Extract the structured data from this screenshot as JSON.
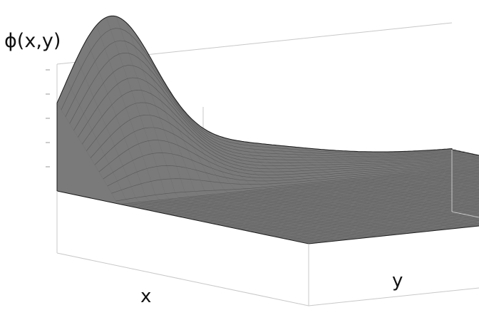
{
  "chart_data": {
    "type": "surface",
    "zlabel": "ϕ(x,y)",
    "xlabel": "x",
    "ylabel": "y",
    "title": "",
    "grid": false,
    "legend": "none",
    "surface_color": "#7a7a7a",
    "edge_color": "#1a1a1a",
    "box_color": "#c8c8c8"
  }
}
